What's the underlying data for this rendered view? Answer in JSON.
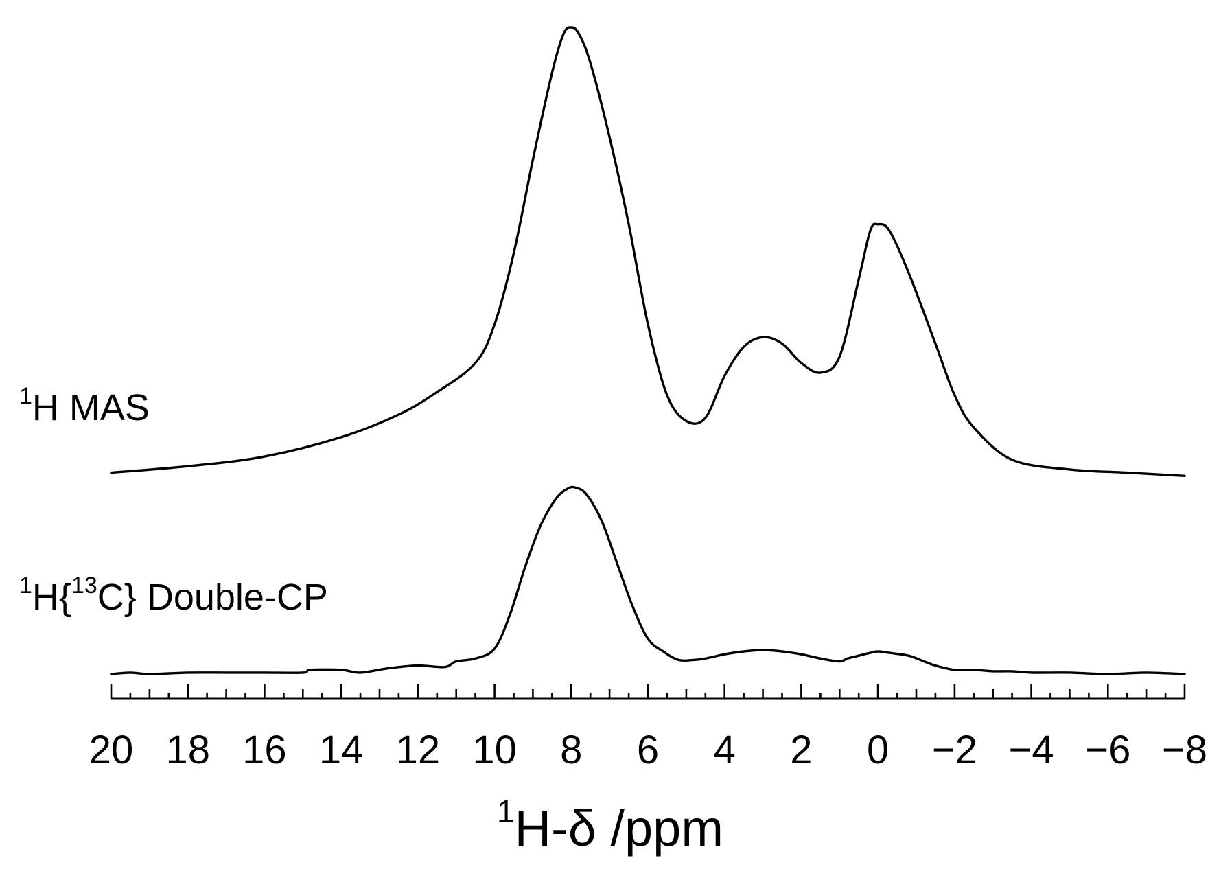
{
  "chart_data": {
    "type": "line",
    "title": "",
    "xlabel": {
      "sup": "1",
      "main": "H-δ /ppm"
    },
    "ylabel": "",
    "xlim": [
      20,
      -8
    ],
    "x_reversed": true,
    "x_ticks_major": [
      20,
      18,
      16,
      14,
      12,
      10,
      8,
      6,
      4,
      2,
      0,
      -2,
      -4,
      -6,
      -8
    ],
    "x_tick_labels": [
      "20",
      "18",
      "16",
      "14",
      "12",
      "10",
      "8",
      "6",
      "4",
      "2",
      "0",
      "−2",
      "−4",
      "−6",
      "−8"
    ],
    "x_minor_step": 0.5,
    "y_axis_shown": false,
    "grid": false,
    "legend": "none",
    "line_color": "#000000",
    "series": [
      {
        "name": "1H MAS",
        "label": {
          "sup": "1",
          "main": "H MAS"
        },
        "points": [
          [
            20,
            0.02
          ],
          [
            18,
            0.04
          ],
          [
            16,
            0.07
          ],
          [
            14,
            0.13
          ],
          [
            12.5,
            0.2
          ],
          [
            11.5,
            0.27
          ],
          [
            10.5,
            0.36
          ],
          [
            10,
            0.48
          ],
          [
            9.5,
            0.7
          ],
          [
            9,
            0.99
          ],
          [
            8.5,
            1.26
          ],
          [
            8.2,
            1.38
          ],
          [
            8.0,
            1.4
          ],
          [
            7.8,
            1.38
          ],
          [
            7.5,
            1.29
          ],
          [
            7,
            1.06
          ],
          [
            6.5,
            0.79
          ],
          [
            6,
            0.48
          ],
          [
            5.5,
            0.26
          ],
          [
            5,
            0.18
          ],
          [
            4.5,
            0.19
          ],
          [
            4,
            0.32
          ],
          [
            3.5,
            0.41
          ],
          [
            3,
            0.44
          ],
          [
            2.5,
            0.42
          ],
          [
            2,
            0.36
          ],
          [
            1.5,
            0.33
          ],
          [
            1,
            0.38
          ],
          [
            0.5,
            0.62
          ],
          [
            0.2,
            0.77
          ],
          [
            0,
            0.79
          ],
          [
            -0.3,
            0.77
          ],
          [
            -0.8,
            0.64
          ],
          [
            -1.5,
            0.42
          ],
          [
            -2,
            0.26
          ],
          [
            -2.5,
            0.16
          ],
          [
            -3.5,
            0.06
          ],
          [
            -5,
            0.03
          ],
          [
            -6.5,
            0.02
          ],
          [
            -8,
            0.01
          ]
        ]
      },
      {
        "name": "1H{13C} Double-CP",
        "label": {
          "sup1": "1",
          "text1": "H{",
          "sup2": "13",
          "text2": "C} Double-CP"
        },
        "points": [
          [
            20,
            0.0
          ],
          [
            19.5,
            0.01
          ],
          [
            19,
            0.0
          ],
          [
            18,
            0.01
          ],
          [
            17,
            0.01
          ],
          [
            16,
            0.01
          ],
          [
            15,
            0.01
          ],
          [
            14.8,
            0.03
          ],
          [
            14,
            0.03
          ],
          [
            13.5,
            0.01
          ],
          [
            12.8,
            0.04
          ],
          [
            12,
            0.06
          ],
          [
            11.3,
            0.05
          ],
          [
            11,
            0.09
          ],
          [
            10.5,
            0.11
          ],
          [
            10,
            0.18
          ],
          [
            9.6,
            0.42
          ],
          [
            9.2,
            0.76
          ],
          [
            8.8,
            1.05
          ],
          [
            8.4,
            1.24
          ],
          [
            8.1,
            1.31
          ],
          [
            7.9,
            1.32
          ],
          [
            7.6,
            1.27
          ],
          [
            7.2,
            1.08
          ],
          [
            6.8,
            0.78
          ],
          [
            6.4,
            0.48
          ],
          [
            6.0,
            0.25
          ],
          [
            5.6,
            0.16
          ],
          [
            5.2,
            0.1
          ],
          [
            4.8,
            0.1
          ],
          [
            4.5,
            0.11
          ],
          [
            4,
            0.14
          ],
          [
            3.5,
            0.16
          ],
          [
            3,
            0.17
          ],
          [
            2.5,
            0.16
          ],
          [
            2,
            0.14
          ],
          [
            1.5,
            0.11
          ],
          [
            1,
            0.09
          ],
          [
            0.8,
            0.11
          ],
          [
            0.5,
            0.13
          ],
          [
            0.2,
            0.15
          ],
          [
            0,
            0.16
          ],
          [
            -0.3,
            0.15
          ],
          [
            -0.8,
            0.13
          ],
          [
            -1.2,
            0.09
          ],
          [
            -1.5,
            0.06
          ],
          [
            -2,
            0.03
          ],
          [
            -2.5,
            0.03
          ],
          [
            -3,
            0.02
          ],
          [
            -3.5,
            0.02
          ],
          [
            -4,
            0.01
          ],
          [
            -5,
            0.01
          ],
          [
            -6,
            0.0
          ],
          [
            -7,
            0.01
          ],
          [
            -8,
            0.0
          ]
        ]
      }
    ]
  }
}
